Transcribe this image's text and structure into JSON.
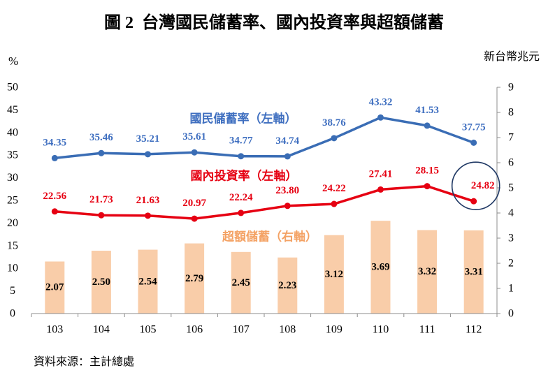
{
  "chart_data": {
    "type": "line",
    "title": "圖 2  台灣國民儲蓄率、國內投資率與超額儲蓄",
    "ylabel": "%",
    "y2label": "新台幣兆元",
    "categories": [
      "103",
      "104",
      "105",
      "106",
      "107",
      "108",
      "109",
      "110",
      "111",
      "112"
    ],
    "ylim": [
      0,
      50
    ],
    "y_ticks": [
      0,
      5,
      10,
      15,
      20,
      25,
      30,
      35,
      40,
      45,
      50
    ],
    "y2lim": [
      0,
      9
    ],
    "y2_ticks": [
      0,
      1,
      2,
      3,
      4,
      5,
      6,
      7,
      8,
      9
    ],
    "grid": false,
    "data_labels": true,
    "series": [
      {
        "name": "國民儲蓄率（左軸）",
        "type": "line",
        "y_axis": "left",
        "color": "#3a6db5",
        "label_color": "#3f6fc0",
        "values": [
          34.35,
          35.46,
          35.21,
          35.61,
          34.77,
          34.74,
          38.76,
          43.32,
          41.53,
          37.75
        ]
      },
      {
        "name": "國內投資率（左軸）",
        "type": "line",
        "y_axis": "left",
        "color": "#e60012",
        "label_color": "#e60012",
        "values": [
          22.56,
          21.73,
          21.63,
          20.97,
          22.24,
          23.8,
          24.22,
          27.41,
          28.15,
          24.82
        ]
      },
      {
        "name": "超額儲蓄（右軸）",
        "type": "bar",
        "y_axis": "right",
        "color": "#f9cda9",
        "label_color": "#f4a264",
        "values": [
          2.07,
          2.5,
          2.54,
          2.79,
          2.45,
          2.23,
          3.12,
          3.69,
          3.32,
          3.31
        ]
      }
    ],
    "highlight": {
      "series_index": 1,
      "point_index": 9,
      "color": "#1f3864"
    },
    "colors": {
      "axis": "#8c8c8c",
      "value_label_bar": "#000000"
    }
  },
  "source": "資料來源：主計總處"
}
